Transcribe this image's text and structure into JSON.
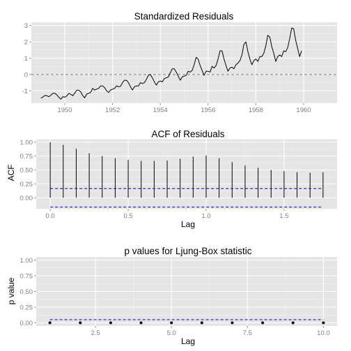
{
  "chart_data": [
    {
      "type": "line",
      "title": "Standardized Residuals",
      "xlabel": "",
      "ylabel": "",
      "xlim": [
        1948.6,
        1961.4
      ],
      "ylim": [
        -1.75,
        3.2
      ],
      "xticks": [
        1950,
        1952,
        1954,
        1956,
        1958,
        1960
      ],
      "xtick_labels": [
        "1950",
        "1952",
        "1954",
        "1956",
        "1958",
        "1960"
      ],
      "yticks": [
        -1,
        0,
        1,
        2,
        3
      ],
      "ytick_labels": [
        "-1",
        "0",
        "1",
        "2",
        "3"
      ],
      "reference_line": {
        "y": 0,
        "style": "dashed",
        "color": "#7f7f7f"
      },
      "grid": true,
      "line_color": "#000000",
      "x_start": 1949.0,
      "x_step": 0.08333,
      "y": [
        -1.45,
        -1.38,
        -1.28,
        -1.3,
        -1.36,
        -1.27,
        -1.15,
        -1.15,
        -1.25,
        -1.39,
        -1.51,
        -1.36,
        -1.39,
        -1.31,
        -1.16,
        -1.21,
        -1.3,
        -1.14,
        -0.96,
        -0.96,
        -1.06,
        -1.29,
        -1.43,
        -1.2,
        -1.15,
        -1.1,
        -0.85,
        -0.95,
        -0.9,
        -0.85,
        -0.7,
        -0.7,
        -0.8,
        -1.0,
        -1.1,
        -0.95,
        -0.9,
        -0.85,
        -0.7,
        -0.75,
        -0.72,
        -0.5,
        -0.35,
        -0.35,
        -0.5,
        -0.75,
        -0.95,
        -0.75,
        -0.7,
        -0.7,
        -0.5,
        -0.55,
        -0.5,
        -0.3,
        -0.05,
        0.0,
        -0.2,
        -0.45,
        -0.65,
        -0.45,
        -0.4,
        -0.45,
        -0.25,
        -0.2,
        -0.15,
        0.1,
        0.35,
        0.35,
        0.15,
        -0.1,
        -0.35,
        -0.15,
        -0.1,
        -0.05,
        0.2,
        0.15,
        0.25,
        0.6,
        1.05,
        0.95,
        0.55,
        0.25,
        -0.05,
        0.2,
        0.2,
        0.15,
        0.5,
        0.4,
        0.55,
        0.95,
        1.45,
        1.45,
        0.95,
        0.55,
        0.2,
        0.4,
        0.45,
        0.35,
        0.6,
        0.7,
        0.85,
        1.2,
        1.85,
        2.0,
        1.4,
        0.95,
        0.6,
        0.85,
        0.95,
        0.8,
        1.1,
        1.1,
        1.3,
        1.75,
        2.4,
        2.3,
        1.7,
        1.3,
        0.8,
        1.1,
        1.2,
        1.1,
        1.45,
        1.4,
        1.65,
        2.2,
        2.85,
        2.8,
        2.1,
        1.6,
        1.1,
        1.45
      ]
    },
    {
      "type": "bar",
      "title": "ACF of Residuals",
      "xlabel": "Lag",
      "ylabel": "ACF",
      "xlim": [
        -0.09,
        1.84
      ],
      "ylim": [
        -0.2,
        1.05
      ],
      "xticks": [
        0,
        0.5,
        1,
        1.5
      ],
      "xtick_labels": [
        "0.0",
        "0.5",
        "1.0",
        "1.5"
      ],
      "yticks": [
        0,
        0.25,
        0.5,
        0.75,
        1
      ],
      "ytick_labels": [
        "0.00",
        "0.25",
        "0.50",
        "0.75",
        "1.00"
      ],
      "confidence_bounds": {
        "upper": 0.165,
        "lower": -0.165,
        "style": "dashed",
        "color": "#0000cc"
      },
      "grid": true,
      "x": [
        0,
        0.0833,
        0.1667,
        0.25,
        0.3333,
        0.4167,
        0.5,
        0.5833,
        0.6667,
        0.75,
        0.8333,
        0.9167,
        1.0,
        1.0833,
        1.1667,
        1.25,
        1.3333,
        1.4167,
        1.5,
        1.5833,
        1.6667,
        1.75
      ],
      "values": [
        1.0,
        0.95,
        0.88,
        0.8,
        0.75,
        0.71,
        0.68,
        0.66,
        0.66,
        0.67,
        0.7,
        0.74,
        0.76,
        0.71,
        0.64,
        0.58,
        0.54,
        0.5,
        0.48,
        0.46,
        0.45,
        0.46
      ]
    },
    {
      "type": "scatter",
      "title": "p values for Ljung-Box statistic",
      "xlabel": "Lag",
      "ylabel": "p value",
      "xlim": [
        0.55,
        10.45
      ],
      "ylim": [
        -0.05,
        1.05
      ],
      "xticks": [
        2.5,
        5,
        7.5,
        10
      ],
      "xtick_labels": [
        "2.5",
        "5.0",
        "7.5",
        "10.0"
      ],
      "yticks": [
        0,
        0.25,
        0.5,
        0.75,
        1
      ],
      "ytick_labels": [
        "0.00",
        "0.25",
        "0.50",
        "0.75",
        "1.00"
      ],
      "significance_line": {
        "y": 0.05,
        "style": "dashed",
        "color": "#0000cc"
      },
      "grid": true,
      "x": [
        1,
        2,
        3,
        4,
        5,
        6,
        7,
        8,
        9,
        10
      ],
      "values": [
        0,
        0,
        0,
        0,
        0,
        0,
        0,
        0,
        0,
        0
      ]
    }
  ]
}
